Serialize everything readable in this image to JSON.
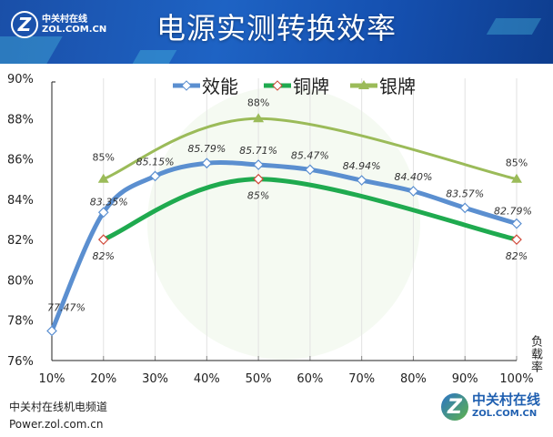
{
  "header": {
    "title": "电源实测转换效率",
    "logo_cn": "中关村在线",
    "logo_en": "ZOL.COM.CN"
  },
  "footer": {
    "line1": "中关村在线机电频道",
    "line2": "Power.zol.com.cn",
    "brand_cn": "中关村在线",
    "brand_en": "ZOL.COM.CN"
  },
  "chart_data": {
    "type": "line",
    "title": "电源实测转换效率",
    "xlabel": "负载率",
    "ylabel": "",
    "x": [
      "10%",
      "20%",
      "30%",
      "40%",
      "50%",
      "60%",
      "70%",
      "80%",
      "90%",
      "100%"
    ],
    "ylim": [
      76,
      90
    ],
    "yticks": [
      "76%",
      "78%",
      "80%",
      "82%",
      "84%",
      "86%",
      "88%",
      "90%"
    ],
    "grid": "vertical",
    "legend": "top-center",
    "series": [
      {
        "name": "效能",
        "color": "#5b8fd0",
        "marker": "diamond",
        "x": [
          "10%",
          "20%",
          "30%",
          "40%",
          "50%",
          "60%",
          "70%",
          "80%",
          "90%",
          "100%"
        ],
        "values": [
          77.47,
          83.35,
          85.15,
          85.79,
          85.71,
          85.47,
          84.94,
          84.4,
          83.57,
          82.79
        ],
        "labels": [
          "77.47%",
          "83.35%",
          "85.15%",
          "85.79%",
          "85.71%",
          "85.47%",
          "84.94%",
          "84.40%",
          "83.57%",
          "82.79%"
        ]
      },
      {
        "name": "铜牌",
        "color": "#1faa4f",
        "marker": "diamond",
        "x": [
          "20%",
          "50%",
          "100%"
        ],
        "values": [
          82,
          85,
          82
        ],
        "labels": [
          "82%",
          "85%",
          "82%"
        ]
      },
      {
        "name": "银牌",
        "color": "#9bbb59",
        "marker": "triangle",
        "x": [
          "20%",
          "50%",
          "100%"
        ],
        "values": [
          85,
          88,
          85
        ],
        "labels": [
          "85%",
          "88%",
          "85%"
        ]
      }
    ]
  }
}
